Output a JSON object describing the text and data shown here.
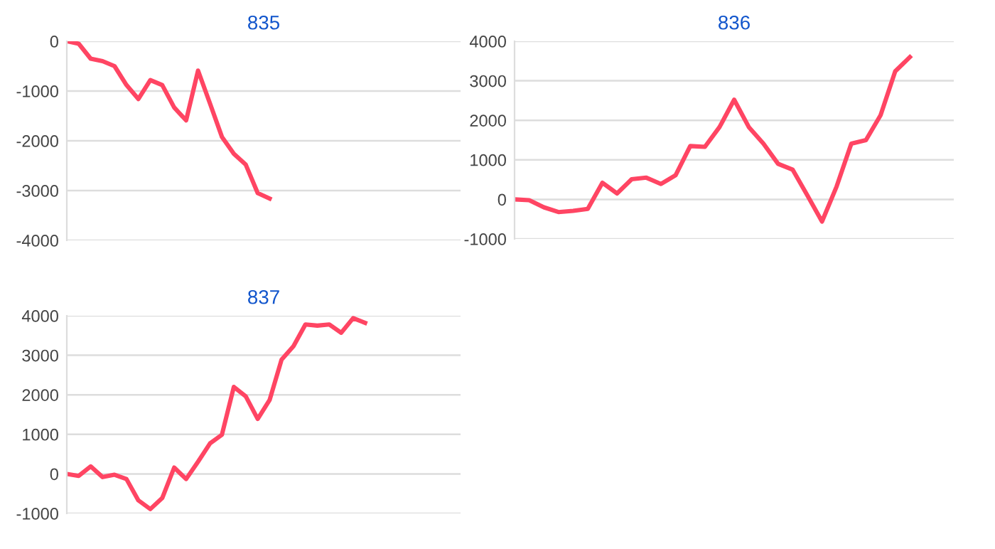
{
  "chart_data": [
    {
      "type": "line",
      "title": "835",
      "categories": [
        null,
        null,
        null,
        null,
        null,
        null,
        null,
        null,
        null,
        null,
        null,
        null,
        null,
        null,
        null,
        null,
        null,
        null,
        null,
        null,
        null,
        null,
        null,
        null,
        null,
        null,
        null,
        null,
        null,
        null,
        null,
        null,
        null,
        null
      ],
      "series": [
        {
          "color": "#ff4563",
          "values": [
            0,
            -50,
            -350,
            -400,
            -500,
            -880,
            -1160,
            -780,
            -880,
            -1330,
            -1590,
            -590,
            -1250,
            -1920,
            -2260,
            -2480,
            -3050,
            -3160,
            null,
            null,
            null,
            null,
            null,
            null,
            null,
            null,
            null,
            null,
            null,
            null,
            null,
            null,
            null,
            null
          ]
        }
      ],
      "ylim": [
        -4000,
        0
      ],
      "yticks": [
        -4000,
        -3000,
        -2000,
        -1000,
        0
      ],
      "grid": "y",
      "tick_labels": "y",
      "marker": "none",
      "line_style": "solid"
    },
    {
      "type": "line",
      "title": "836",
      "categories": [
        null,
        null,
        null,
        null,
        null,
        null,
        null,
        null,
        null,
        null,
        null,
        null,
        null,
        null,
        null,
        null,
        null,
        null,
        null,
        null,
        null,
        null,
        null,
        null,
        null,
        null,
        null,
        null,
        null,
        null,
        null
      ],
      "series": [
        {
          "color": "#ff4563",
          "values": [
            0,
            -20,
            -200,
            -320,
            -290,
            -240,
            420,
            150,
            510,
            550,
            390,
            610,
            1350,
            1330,
            1830,
            2520,
            1830,
            1410,
            900,
            750,
            100,
            -560,
            330,
            1410,
            1500,
            2130,
            3240,
            3600,
            null,
            null,
            null
          ]
        }
      ],
      "ylim": [
        -1000,
        4000
      ],
      "yticks": [
        -1000,
        0,
        1000,
        2000,
        3000,
        4000
      ],
      "grid": "y",
      "tick_labels": "y",
      "marker": "none",
      "line_style": "solid"
    },
    {
      "type": "line",
      "title": "837",
      "categories": [
        null,
        null,
        null,
        null,
        null,
        null,
        null,
        null,
        null,
        null,
        null,
        null,
        null,
        null,
        null,
        null,
        null,
        null,
        null,
        null,
        null,
        null,
        null,
        null,
        null,
        null,
        null,
        null,
        null,
        null,
        null,
        null,
        null,
        null
      ],
      "series": [
        {
          "color": "#ff4563",
          "values": [
            0,
            -50,
            190,
            -80,
            -20,
            -130,
            -670,
            -890,
            -610,
            160,
            -130,
            310,
            770,
            990,
            2200,
            1960,
            1390,
            1870,
            2890,
            3230,
            3780,
            3750,
            3780,
            3570,
            3940,
            3820,
            null,
            null,
            null,
            null,
            null,
            null,
            null,
            null
          ]
        }
      ],
      "ylim": [
        -1000,
        4000
      ],
      "yticks": [
        -1000,
        0,
        1000,
        2000,
        3000,
        4000
      ],
      "grid": "y",
      "tick_labels": "y",
      "marker": "none",
      "line_style": "solid"
    }
  ]
}
